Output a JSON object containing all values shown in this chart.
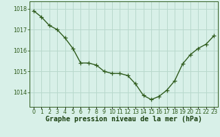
{
  "x": [
    0,
    1,
    2,
    3,
    4,
    5,
    6,
    7,
    8,
    9,
    10,
    11,
    12,
    13,
    14,
    15,
    16,
    17,
    18,
    19,
    20,
    21,
    22,
    23
  ],
  "y": [
    1017.9,
    1017.6,
    1017.2,
    1017.0,
    1016.6,
    1016.1,
    1015.4,
    1015.4,
    1015.3,
    1015.0,
    1014.9,
    1014.9,
    1014.8,
    1014.4,
    1013.85,
    1013.65,
    1013.8,
    1014.1,
    1014.55,
    1015.35,
    1015.8,
    1016.1,
    1016.3,
    1016.7
  ],
  "line_color": "#2d5a1b",
  "marker": "+",
  "marker_size": 4,
  "marker_color": "#2d5a1b",
  "background_color": "#d8f0e8",
  "grid_color": "#b8d8cc",
  "ylabel_ticks": [
    1014,
    1015,
    1016,
    1017,
    1018
  ],
  "xlabel": "Graphe pression niveau de la mer (hPa)",
  "ylim": [
    1013.3,
    1018.35
  ],
  "xlim": [
    -0.5,
    23.5
  ],
  "tick_fontsize": 5.8,
  "line_width": 1.0,
  "xlabel_color": "#1a4010",
  "xlabel_fontsize": 7.2
}
